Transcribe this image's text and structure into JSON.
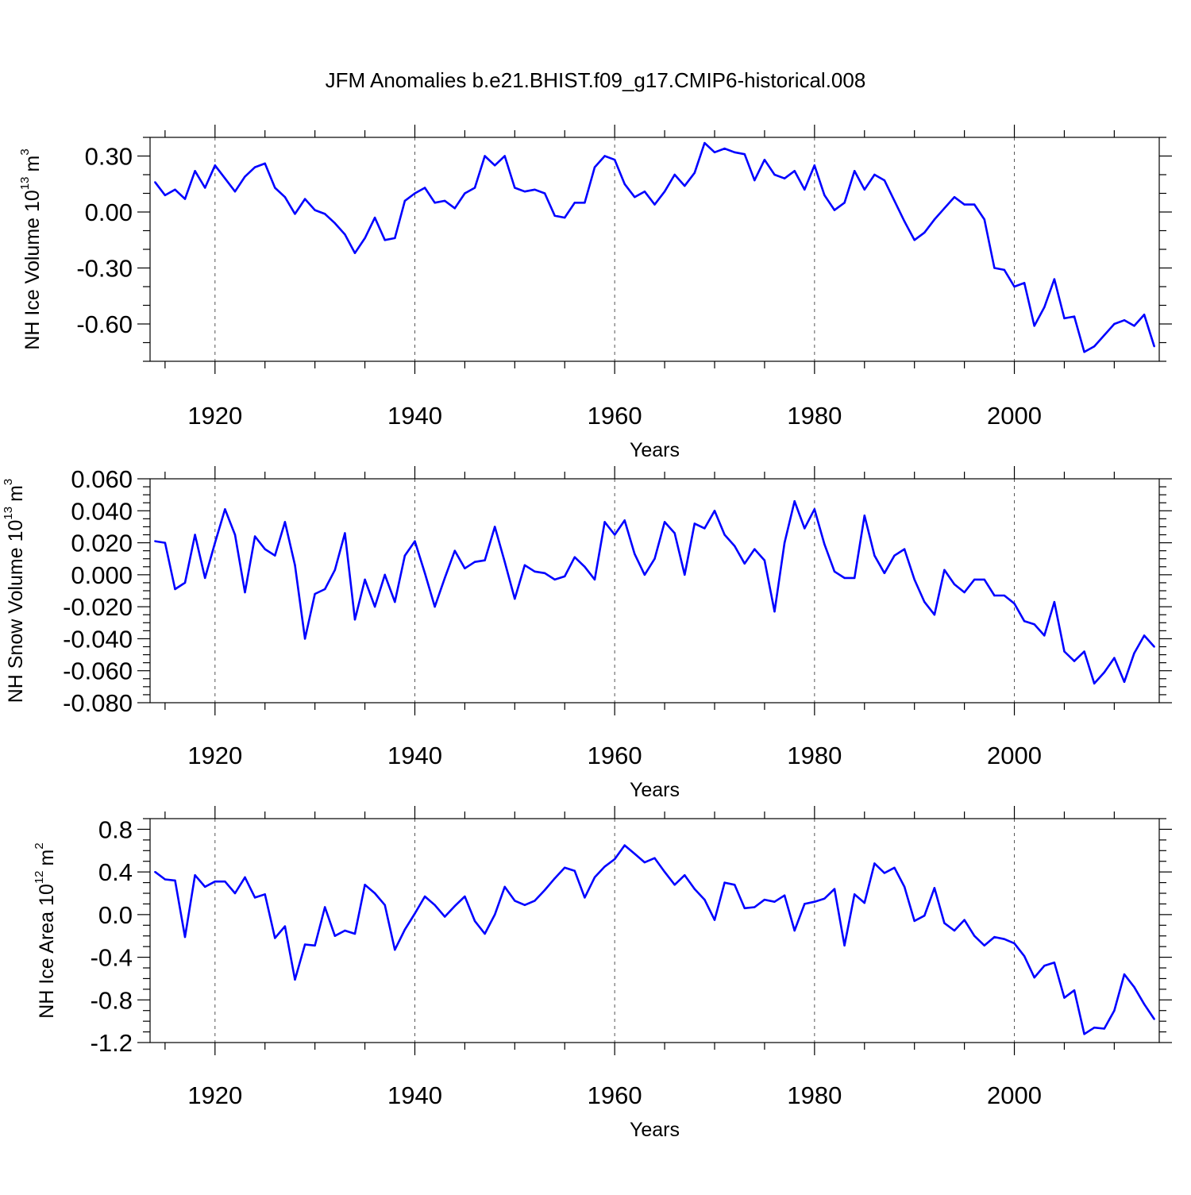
{
  "figure": {
    "title": "JFM Anomalies b.e21.BHIST.f09_g17.CMIP6-historical.008"
  },
  "chart_data": [
    {
      "type": "line",
      "id": "ice-volume",
      "ylabel_main": "NH Ice Volume 10",
      "ylabel_exp": "13",
      "ylabel_unit": "m",
      "ylabel_unit_exp": "3",
      "xlabel": "Years",
      "xlim": [
        1913.5,
        2014.5
      ],
      "ylim": [
        -0.8,
        0.4
      ],
      "yticks": [
        0.3,
        0.0,
        -0.3,
        -0.6
      ],
      "ytick_labels": [
        "0.30",
        "0.00",
        "-0.30",
        "-0.60"
      ],
      "yminor_step": 0.1,
      "xticks": [
        1920,
        1940,
        1960,
        1980,
        2000
      ],
      "xtick_labels": [
        "1920",
        "1940",
        "1960",
        "1980",
        "2000"
      ],
      "gridlines_x": [
        1920,
        1940,
        1960,
        1980,
        2000
      ],
      "color": "#0000ff",
      "x_start": 1914,
      "values": [
        0.16,
        0.09,
        0.12,
        0.07,
        0.22,
        0.13,
        0.25,
        0.18,
        0.11,
        0.19,
        0.24,
        0.26,
        0.13,
        0.08,
        -0.01,
        0.07,
        0.01,
        -0.01,
        -0.06,
        -0.12,
        -0.22,
        -0.14,
        -0.03,
        -0.15,
        -0.14,
        0.06,
        0.1,
        0.13,
        0.05,
        0.06,
        0.02,
        0.1,
        0.13,
        0.3,
        0.25,
        0.3,
        0.13,
        0.11,
        0.12,
        0.1,
        -0.02,
        -0.03,
        0.05,
        0.05,
        0.24,
        0.3,
        0.28,
        0.15,
        0.08,
        0.11,
        0.04,
        0.11,
        0.2,
        0.14,
        0.21,
        0.37,
        0.32,
        0.34,
        0.32,
        0.31,
        0.17,
        0.28,
        0.2,
        0.18,
        0.22,
        0.12,
        0.25,
        0.09,
        0.01,
        0.05,
        0.22,
        0.12,
        0.2,
        0.17,
        0.06,
        -0.05,
        -0.15,
        -0.11,
        -0.04,
        0.02,
        0.08,
        0.04,
        0.04,
        -0.04,
        -0.3,
        -0.31,
        -0.4,
        -0.38,
        -0.61,
        -0.51,
        -0.36,
        -0.57,
        -0.56,
        -0.75,
        -0.72,
        -0.66,
        -0.6,
        -0.58,
        -0.61,
        -0.55,
        -0.72
      ]
    },
    {
      "type": "line",
      "id": "snow-volume",
      "ylabel_main": "NH Snow Volume 10",
      "ylabel_exp": "13",
      "ylabel_unit": "m",
      "ylabel_unit_exp": "3",
      "xlabel": "Years",
      "xlim": [
        1913.5,
        2014.5
      ],
      "ylim": [
        -0.08,
        0.06
      ],
      "yticks": [
        0.06,
        0.04,
        0.02,
        0.0,
        -0.02,
        -0.04,
        -0.06,
        -0.08
      ],
      "ytick_labels": [
        "0.060",
        "0.040",
        "0.020",
        "0.000",
        "-0.020",
        "-0.040",
        "-0.060",
        "-0.080"
      ],
      "yminor_step": 0.005,
      "xticks": [
        1920,
        1940,
        1960,
        1980,
        2000
      ],
      "xtick_labels": [
        "1920",
        "1940",
        "1960",
        "1980",
        "2000"
      ],
      "gridlines_x": [
        1920,
        1940,
        1960,
        1980,
        2000
      ],
      "color": "#0000ff",
      "x_start": 1914,
      "values": [
        0.021,
        0.02,
        -0.009,
        -0.005,
        0.025,
        -0.002,
        0.02,
        0.041,
        0.025,
        -0.011,
        0.024,
        0.016,
        0.012,
        0.033,
        0.006,
        -0.04,
        -0.012,
        -0.009,
        0.003,
        0.026,
        -0.028,
        -0.003,
        -0.02,
        0.0,
        -0.017,
        0.012,
        0.021,
        0.001,
        -0.02,
        -0.002,
        0.015,
        0.004,
        0.008,
        0.009,
        0.03,
        0.008,
        -0.015,
        0.006,
        0.002,
        0.001,
        -0.003,
        -0.001,
        0.011,
        0.005,
        -0.003,
        0.033,
        0.025,
        0.034,
        0.013,
        0.0,
        0.01,
        0.033,
        0.026,
        0.0,
        0.032,
        0.029,
        0.04,
        0.025,
        0.018,
        0.007,
        0.016,
        0.009,
        -0.023,
        0.02,
        0.046,
        0.029,
        0.041,
        0.019,
        0.002,
        -0.002,
        -0.002,
        0.037,
        0.012,
        0.001,
        0.012,
        0.016,
        -0.003,
        -0.017,
        -0.025,
        0.003,
        -0.006,
        -0.011,
        -0.003,
        -0.003,
        -0.013,
        -0.013,
        -0.018,
        -0.029,
        -0.031,
        -0.038,
        -0.017,
        -0.048,
        -0.054,
        -0.048,
        -0.068,
        -0.061,
        -0.052,
        -0.067,
        -0.049,
        -0.038,
        -0.045
      ]
    },
    {
      "type": "line",
      "id": "ice-area",
      "ylabel_main": "NH Ice Area 10",
      "ylabel_exp": "12",
      "ylabel_unit": "m",
      "ylabel_unit_exp": "2",
      "xlabel": "Years",
      "xlim": [
        1913.5,
        2014.5
      ],
      "ylim": [
        -1.2,
        0.9
      ],
      "yticks": [
        0.8,
        0.4,
        0.0,
        -0.4,
        -0.8,
        -1.2
      ],
      "ytick_labels": [
        "0.8",
        "0.4",
        "0.0",
        "-0.4",
        "-0.8",
        "-1.2"
      ],
      "yminor_step": 0.1,
      "xticks": [
        1920,
        1940,
        1960,
        1980,
        2000
      ],
      "xtick_labels": [
        "1920",
        "1940",
        "1960",
        "1980",
        "2000"
      ],
      "gridlines_x": [
        1920,
        1940,
        1960,
        1980,
        2000
      ],
      "color": "#0000ff",
      "x_start": 1914,
      "values": [
        0.4,
        0.33,
        0.32,
        -0.21,
        0.37,
        0.26,
        0.31,
        0.31,
        0.2,
        0.35,
        0.16,
        0.19,
        -0.22,
        -0.11,
        -0.61,
        -0.28,
        -0.29,
        0.07,
        -0.2,
        -0.15,
        -0.18,
        0.28,
        0.2,
        0.09,
        -0.33,
        -0.14,
        0.01,
        0.17,
        0.09,
        -0.02,
        0.08,
        0.17,
        -0.06,
        -0.18,
        0.0,
        0.26,
        0.13,
        0.09,
        0.13,
        0.23,
        0.34,
        0.44,
        0.41,
        0.16,
        0.35,
        0.45,
        0.52,
        0.65,
        0.57,
        0.49,
        0.53,
        0.4,
        0.28,
        0.37,
        0.24,
        0.14,
        -0.05,
        0.3,
        0.28,
        0.06,
        0.07,
        0.14,
        0.12,
        0.18,
        -0.15,
        0.1,
        0.12,
        0.15,
        0.24,
        -0.29,
        0.19,
        0.11,
        0.48,
        0.39,
        0.44,
        0.26,
        -0.06,
        -0.01,
        0.25,
        -0.08,
        -0.15,
        -0.05,
        -0.2,
        -0.29,
        -0.21,
        -0.23,
        -0.27,
        -0.39,
        -0.59,
        -0.48,
        -0.45,
        -0.78,
        -0.71,
        -1.12,
        -1.06,
        -1.07,
        -0.9,
        -0.56,
        -0.68,
        -0.84,
        -0.98
      ]
    }
  ]
}
